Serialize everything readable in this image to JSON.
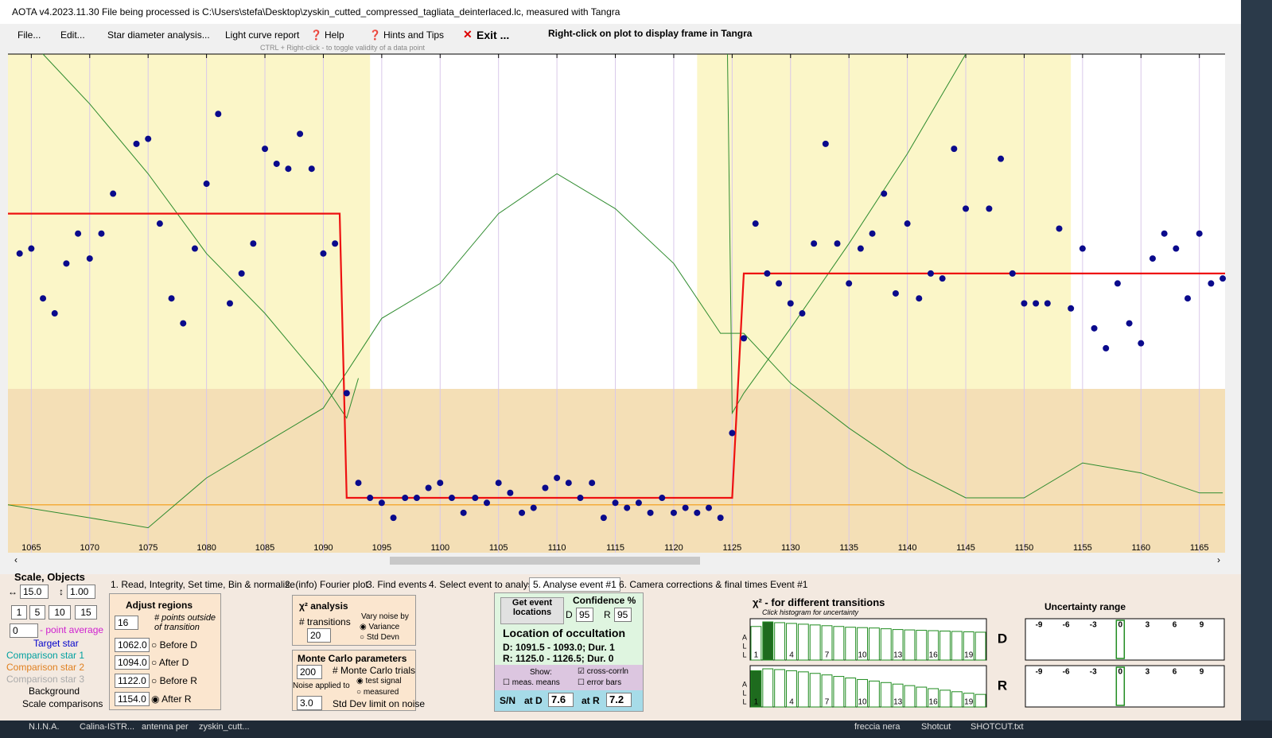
{
  "window": {
    "title": "AOTA v4.2023.11.30   File being processed is C:\\Users\\stefa\\Desktop\\zyskin_cutted_compressed_tagliata_deinterlaced.lc, measured with Tangra"
  },
  "menu": {
    "items": [
      "File...",
      "Edit...",
      "Star diameter analysis...",
      "Light curve report",
      "Help",
      "Hints and Tips",
      "Exit ..."
    ],
    "hint": "Right-click on plot to display frame in Tangra",
    "subhint": "CTRL + Right-click  -  to toggle validity of a data point"
  },
  "chart_data": {
    "type": "scatter",
    "xlim": [
      1063,
      1167.2
    ],
    "ylim": [
      0,
      100
    ],
    "xticks": [
      1065,
      1070,
      1075,
      1080,
      1085,
      1090,
      1095,
      1100,
      1105,
      1110,
      1115,
      1120,
      1125,
      1130,
      1135,
      1140,
      1145,
      1150,
      1155,
      1160,
      1165
    ],
    "series": [
      {
        "color": "#0a0a8c",
        "x": [
          1064,
          1065,
          1066,
          1067,
          1068,
          1069,
          1070,
          1071,
          1072,
          1074,
          1075,
          1076,
          1077,
          1078,
          1079,
          1080,
          1081,
          1082,
          1083,
          1084,
          1085,
          1086,
          1087,
          1088,
          1089,
          1090,
          1091,
          1092,
          1093,
          1094,
          1095,
          1096,
          1097,
          1098,
          1099,
          1100,
          1101,
          1102,
          1103,
          1104,
          1105,
          1106,
          1107,
          1108,
          1109,
          1110,
          1111,
          1112,
          1113,
          1114,
          1115,
          1116,
          1117,
          1118,
          1119,
          1120,
          1121,
          1122,
          1123,
          1124,
          1125,
          1126,
          1127,
          1128,
          1129,
          1130,
          1131,
          1132,
          1133,
          1134,
          1135,
          1136,
          1137,
          1138,
          1139,
          1140,
          1141,
          1142,
          1143,
          1144,
          1145,
          1147,
          1148,
          1149,
          1150,
          1151,
          1152,
          1153,
          1154,
          1155,
          1156,
          1157,
          1158,
          1159,
          1160,
          1161,
          1162,
          1163,
          1164,
          1165,
          1166,
          1167
        ],
        "values": [
          60,
          61,
          51,
          48,
          58,
          64,
          59,
          64,
          72,
          82,
          83,
          66,
          51,
          46,
          61,
          74,
          88,
          50,
          56,
          62,
          81,
          78,
          77,
          84,
          77,
          60,
          62,
          32,
          14,
          11,
          10,
          7,
          11,
          11,
          13,
          14,
          11,
          8,
          11,
          10,
          14,
          12,
          8,
          9,
          13,
          15,
          14,
          11,
          14,
          7,
          10,
          9,
          10,
          8,
          11,
          8,
          9,
          8,
          9,
          7,
          24,
          43,
          66,
          56,
          54,
          50,
          48,
          62,
          82,
          62,
          54,
          61,
          64,
          72,
          52,
          66,
          51,
          56,
          55,
          81,
          69,
          69,
          79,
          56,
          50,
          50,
          50,
          65,
          49,
          61,
          45,
          41,
          54,
          46,
          42,
          59,
          64,
          61,
          51,
          64,
          54,
          55
        ]
      }
    ],
    "model": {
      "color": "#ee1111",
      "x": [
        1063,
        1091.4,
        1092,
        1125,
        1126,
        1167.2
      ],
      "values": [
        68,
        68,
        11,
        11,
        56,
        56
      ]
    },
    "curves": [
      {
        "color": "#2e8b2e",
        "x": [
          1066,
          1070,
          1075,
          1080,
          1085,
          1090,
          1092,
          1093
        ],
        "values": [
          100,
          90,
          76,
          60,
          48,
          34,
          27,
          35
        ]
      },
      {
        "color": "#2e8b2e",
        "x": [
          1063,
          1070,
          1075,
          1080,
          1085,
          1090,
          1095,
          1100,
          1105,
          1110,
          1115,
          1120,
          1124,
          1126,
          1130,
          1135,
          1140,
          1145,
          1150,
          1155,
          1160,
          1165,
          1167
        ],
        "values": [
          9.6,
          7,
          5,
          15,
          22,
          29,
          47,
          54,
          68,
          76,
          69,
          58,
          44,
          44,
          34,
          25,
          17,
          11,
          11,
          18,
          16,
          12,
          12
        ]
      },
      {
        "color": "#2e8b2e",
        "x": [
          1124.6,
          1125,
          1126,
          1130,
          1135,
          1140,
          1145
        ],
        "values": [
          100,
          28,
          32,
          45,
          62,
          80,
          100
        ]
      }
    ],
    "baseline": {
      "color": "#f39c12",
      "value": 9.6
    }
  },
  "tabs": [
    "1.  Read, Integrity, Set time, Bin & normalise",
    "2. (info)  Fourier plot",
    "3. Find events",
    "4. Select event to analyse",
    "5. Analyse event #1",
    "6. Camera corrections & final times Event #1"
  ],
  "left_panel": {
    "title": "Scale,  Objects",
    "scale": "15.0",
    "objects": "1.00",
    "buttons": [
      "1",
      "5",
      "10",
      "15"
    ],
    "average": "0",
    "average_label": "- point average",
    "objects_list": [
      "Target star",
      "Comparison star 1",
      "Comparison star 2",
      "Comparison star 3",
      "Background"
    ],
    "scale_comparisons": "Scale comparisons"
  },
  "regions_panel": {
    "title": "Adjust regions",
    "points": "16",
    "points_label": "# points outside of transition",
    "regions": [
      {
        "value": 1062,
        "label": "1062.0"
      },
      {
        "value": 1094,
        "label": "1094.0"
      },
      {
        "value": 1122,
        "label": "1122.0"
      },
      {
        "value": 1154,
        "label": "1154.0"
      }
    ],
    "region_names": [
      "Before D",
      "After D",
      "Before R",
      "After R"
    ]
  },
  "chi_panel": {
    "title": "χ² analysis",
    "transitions_label": "# transitions",
    "transitions": "20",
    "vary_label": "Vary noise by",
    "options": [
      "Variance",
      "Std Devn"
    ]
  },
  "mc_panel": {
    "title": "Monte Carlo parameters",
    "trials": "200",
    "trials_label": "# Monte Carlo trials",
    "noise_label": "Noise applied to",
    "options": [
      "test signal",
      "measured"
    ],
    "limit": "3.0",
    "limit_label": "Std Dev limit on noise"
  },
  "event_panel": {
    "button": "Get event locations",
    "confidence": "Confidence %",
    "d": "D",
    "d_value": "95",
    "r": "R",
    "r_value": "95",
    "location_title": "Location of occultation",
    "d_line": "D: 1091.5 - 1093.0; Dur. 1",
    "r_line": "R: 1125.0 - 1126.5; Dur. 0",
    "show": "Show:",
    "checks": [
      "cross-corrln",
      "meas. means",
      "error bars"
    ],
    "sn": "S/N",
    "at_d": "at D",
    "sn_d": "7.6",
    "at_r": "at R",
    "sn_r": "7.2"
  },
  "histogram_panel": {
    "title": "χ² - for different transitions",
    "subtitle": "Click histogram for uncertainty",
    "all": "ALL",
    "labels": [
      "1",
      "4",
      "7",
      "10",
      "13",
      "16",
      "19"
    ],
    "label_positions": [
      1,
      4,
      7,
      10,
      13,
      16,
      19
    ],
    "d": {
      "name": "D",
      "highlight": 1,
      "values": [
        88,
        100,
        98,
        96,
        94,
        92,
        90,
        88,
        86,
        85,
        84,
        82,
        80,
        79,
        78,
        77,
        76,
        75,
        74,
        73
      ]
    },
    "r": {
      "name": "R",
      "highlight": 0,
      "values": [
        95,
        100,
        98,
        95,
        92,
        88,
        84,
        80,
        76,
        72,
        68,
        64,
        60,
        56,
        52,
        48,
        44,
        40,
        36,
        33
      ]
    }
  },
  "uncertainty_panel": {
    "title": "Uncertainty range",
    "ticks": [
      "-9",
      "-6",
      "-3",
      "0",
      "3",
      "6",
      "9"
    ]
  },
  "taskbar": [
    "N.I.N.A.",
    "Calina-ISTR...",
    "antenna per",
    "zyskin_cutt...",
    "freccia nera",
    "Shotcut",
    "SHOTCUT.txt"
  ]
}
